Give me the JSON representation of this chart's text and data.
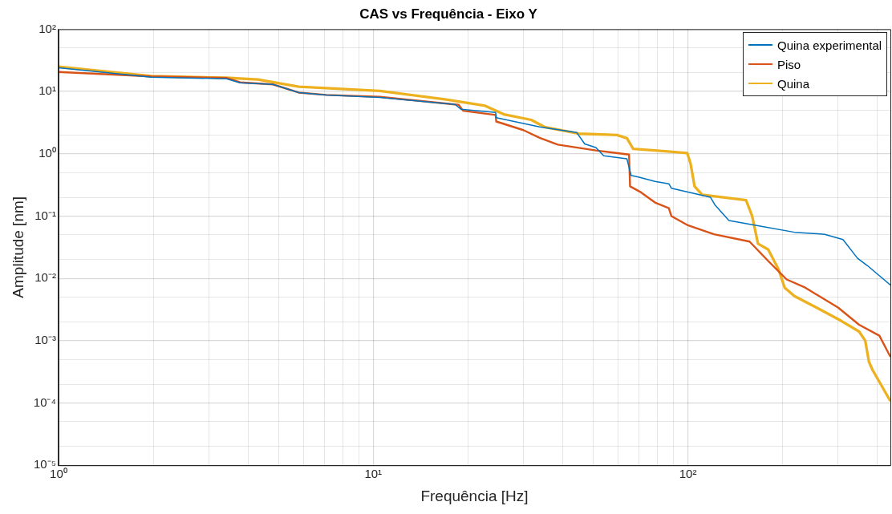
{
  "chart_data": {
    "type": "line",
    "title": "CAS vs Frequência - Eixo Y",
    "xlabel": "Frequência [Hz]",
    "ylabel": "Amplitude [nm]",
    "log": "xy",
    "grid": true,
    "legend": "top right",
    "marker": "none",
    "line_style": "solid",
    "xlim": [
      1,
      440
    ],
    "xticks": [
      {
        "value": 1,
        "label": "10⁰"
      },
      {
        "value": 2,
        "label": null
      },
      {
        "value": 3,
        "label": null
      },
      {
        "value": 4,
        "label": null
      },
      {
        "value": 5,
        "label": null
      },
      {
        "value": 6,
        "label": null
      },
      {
        "value": 7,
        "label": null
      },
      {
        "value": 8,
        "label": null
      },
      {
        "value": 9,
        "label": null
      },
      {
        "value": 10,
        "label": "10¹"
      },
      {
        "value": 20,
        "label": null
      },
      {
        "value": 30,
        "label": null
      },
      {
        "value": 40,
        "label": null
      },
      {
        "value": 50,
        "label": null
      },
      {
        "value": 60,
        "label": null
      },
      {
        "value": 70,
        "label": null
      },
      {
        "value": 80,
        "label": null
      },
      {
        "value": 90,
        "label": null
      },
      {
        "value": 100,
        "label": "10²"
      },
      {
        "value": 200,
        "label": null
      },
      {
        "value": 300,
        "label": null
      },
      {
        "value": 400,
        "label": null
      }
    ],
    "ylim": [
      1e-05,
      100
    ],
    "yticks": [
      {
        "value": 1e-05,
        "label": "10⁻⁵"
      },
      {
        "value": 2e-05,
        "label": null
      },
      {
        "value": 5e-05,
        "label": null
      },
      {
        "value": 0.0001,
        "label": "10⁻⁴"
      },
      {
        "value": 0.0002,
        "label": null
      },
      {
        "value": 0.0005,
        "label": null
      },
      {
        "value": 0.001,
        "label": "10⁻³"
      },
      {
        "value": 0.002,
        "label": null
      },
      {
        "value": 0.005,
        "label": null
      },
      {
        "value": 0.01,
        "label": "10⁻²"
      },
      {
        "value": 0.02,
        "label": null
      },
      {
        "value": 0.05,
        "label": null
      },
      {
        "value": 0.1,
        "label": "10⁻¹"
      },
      {
        "value": 0.2,
        "label": null
      },
      {
        "value": 0.5,
        "label": null
      },
      {
        "value": 1,
        "label": "10⁰"
      },
      {
        "value": 2,
        "label": null
      },
      {
        "value": 5,
        "label": null
      },
      {
        "value": 10,
        "label": "10¹"
      },
      {
        "value": 20,
        "label": null
      },
      {
        "value": 50,
        "label": null
      },
      {
        "value": 100,
        "label": "10²"
      }
    ],
    "series": [
      {
        "name": "Quina experimental",
        "color": "#0072bd",
        "x": [
          1,
          1.97,
          3.42,
          3.78,
          4.8,
          5.8,
          7.1,
          10.5,
          18.2,
          19,
          24.5,
          24.6,
          33.8,
          44.3,
          47,
          51,
          54,
          64,
          66,
          70,
          78.6,
          87,
          88.6,
          118,
          122,
          135,
          167,
          218,
          272,
          311,
          346,
          372,
          440
        ],
        "values": [
          24,
          17,
          16,
          13.8,
          13,
          9.6,
          8.8,
          8,
          6.2,
          5.2,
          4.6,
          3.8,
          2.7,
          2.2,
          1.44,
          1.26,
          0.93,
          0.83,
          0.45,
          0.42,
          0.36,
          0.33,
          0.28,
          0.2,
          0.15,
          0.085,
          0.07,
          0.055,
          0.051,
          0.042,
          0.021,
          0.016,
          0.0078
        ]
      },
      {
        "name": "Piso",
        "color": "#d95319",
        "x": [
          1,
          1.97,
          3.42,
          3.78,
          4.8,
          5.8,
          7.1,
          10.5,
          18.7,
          19.3,
          24.5,
          24.6,
          30,
          33.8,
          38.6,
          51,
          65,
          65.5,
          71,
          78.6,
          87,
          88.6,
          99.5,
          121,
          157,
          180,
          206,
          236,
          300,
          350,
          406,
          440
        ],
        "values": [
          20.6,
          17.5,
          16.5,
          14,
          13,
          9.6,
          8.8,
          8.2,
          6.1,
          4.9,
          4.2,
          3.3,
          2.4,
          1.8,
          1.4,
          1.13,
          0.97,
          0.3,
          0.24,
          0.165,
          0.134,
          0.1,
          0.072,
          0.051,
          0.039,
          0.019,
          0.0096,
          0.0071,
          0.0034,
          0.0018,
          0.0012,
          0.00055
        ]
      },
      {
        "name": "Quina",
        "color": "#edb120",
        "x": [
          1,
          1.97,
          3.42,
          4.3,
          5.8,
          10.5,
          16.9,
          22.7,
          26,
          31.8,
          35,
          45,
          59.5,
          64,
          67,
          78.6,
          99.5,
          102,
          105,
          111,
          153,
          160,
          167,
          180,
          194,
          203,
          218,
          256,
          306,
          350,
          366,
          376,
          386,
          440
        ],
        "values": [
          25,
          17.6,
          16.6,
          15.6,
          11.9,
          10.2,
          7.5,
          5.9,
          4.3,
          3.5,
          2.7,
          2.1,
          2,
          1.78,
          1.2,
          1.13,
          1.03,
          0.69,
          0.3,
          0.22,
          0.18,
          0.1,
          0.036,
          0.029,
          0.014,
          0.0071,
          0.0052,
          0.0034,
          0.0021,
          0.0014,
          0.001,
          0.00046,
          0.00034,
          0.000107
        ]
      }
    ]
  }
}
